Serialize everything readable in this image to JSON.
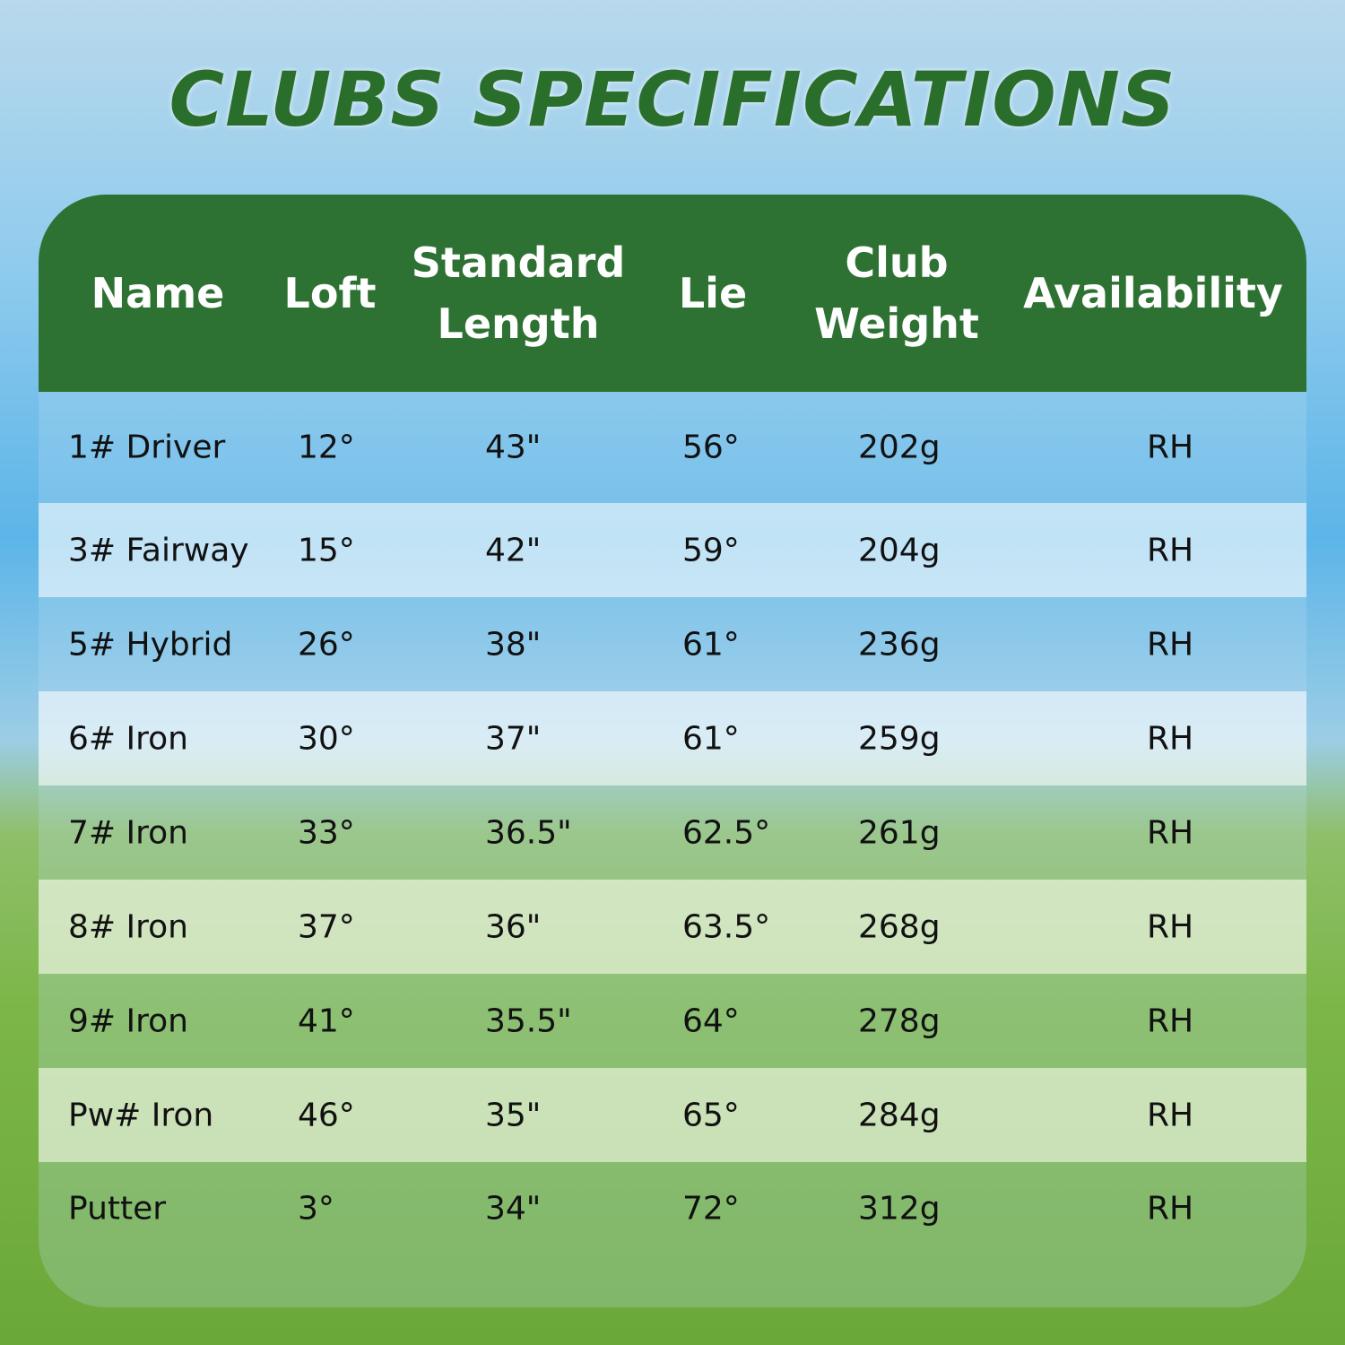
{
  "title": "CLUBS SPECIFICATIONS",
  "colors": {
    "header": "#2e7233",
    "title": "#2a6e2c"
  },
  "columns": [
    "Name",
    "Loft",
    "Standard Length",
    "Lie",
    "Club Weight",
    "Availability"
  ],
  "rows": [
    [
      "1# Driver",
      "12°",
      "43\"",
      "56°",
      "202g",
      "RH"
    ],
    [
      "3# Fairway",
      "15°",
      "42\"",
      "59°",
      "204g",
      "RH"
    ],
    [
      "5# Hybrid",
      "26°",
      "38\"",
      "61°",
      "236g",
      "RH"
    ],
    [
      "6# Iron",
      "30°",
      "37\"",
      "61°",
      "259g",
      "RH"
    ],
    [
      "7# Iron",
      "33°",
      "36.5\"",
      "62.5°",
      "261g",
      "RH"
    ],
    [
      "8# Iron",
      "37°",
      "36\"",
      "63.5°",
      "268g",
      "RH"
    ],
    [
      "9# Iron",
      "41°",
      "35.5\"",
      "64°",
      "278g",
      "RH"
    ],
    [
      "Pw# Iron",
      "46°",
      "35\"",
      "65°",
      "284g",
      "RH"
    ],
    [
      "Putter",
      "3°",
      "34\"",
      "72°",
      "312g",
      "RH"
    ]
  ]
}
